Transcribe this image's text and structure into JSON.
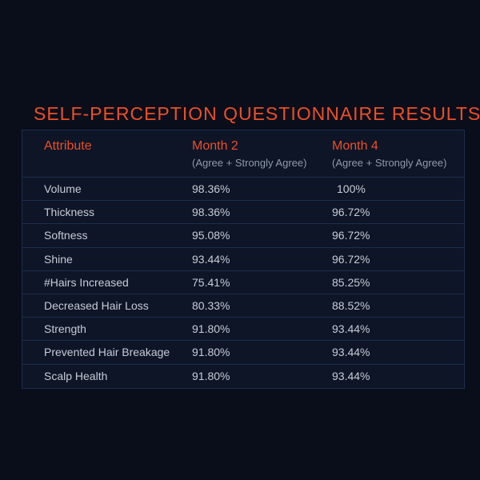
{
  "title": "SELF-PERCEPTION QUESTIONNAIRE RESULTS",
  "chart_data": {
    "type": "table",
    "title": "SELF-PERCEPTION QUESTIONNAIRE RESULTS",
    "columns": [
      {
        "label": "Attribute",
        "sublabel": ""
      },
      {
        "label": "Month 2",
        "sublabel": "(Agree + Strongly Agree)"
      },
      {
        "label": "Month 4",
        "sublabel": "(Agree + Strongly Agree)"
      }
    ],
    "rows": [
      {
        "attribute": "Volume",
        "month2": "98.36%",
        "month4": "100%"
      },
      {
        "attribute": "Thickness",
        "month2": "98.36%",
        "month4": "96.72%"
      },
      {
        "attribute": "Softness",
        "month2": "95.08%",
        "month4": "96.72%"
      },
      {
        "attribute": "Shine",
        "month2": "93.44%",
        "month4": "96.72%"
      },
      {
        "attribute": "#Hairs Increased",
        "month2": "75.41%",
        "month4": "85.25%"
      },
      {
        "attribute": "Decreased Hair Loss",
        "month2": "80.33%",
        "month4": "88.52%"
      },
      {
        "attribute": "Strength",
        "month2": "91.80%",
        "month4": "93.44%"
      },
      {
        "attribute": "Prevented Hair Breakage",
        "month2": "91.80%",
        "month4": "93.44%"
      },
      {
        "attribute": "Scalp Health",
        "month2": "91.80%",
        "month4": "93.44%"
      }
    ]
  },
  "colors": {
    "background": "#0a0e1b",
    "table_background": "#0d1527",
    "border": "#1e2d4d",
    "accent": "#ed4f27",
    "subheader_text": "#909aa9",
    "row_text": "#c7ccd6"
  }
}
